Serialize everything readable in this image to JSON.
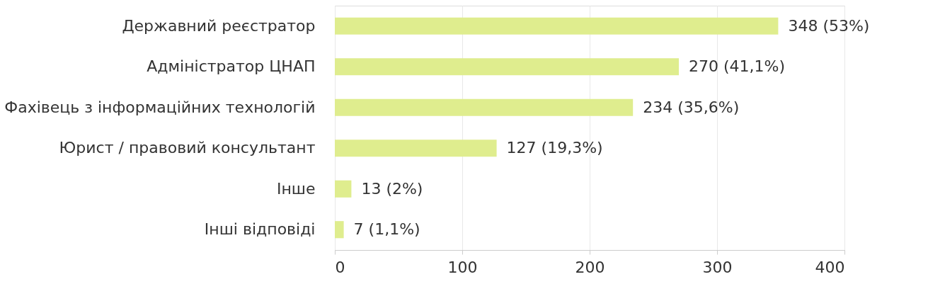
{
  "chart_data": {
    "type": "bar",
    "orientation": "horizontal",
    "categories": [
      "Державний реєстратор",
      "Адміністратор ЦНАП",
      "Фахівець з інформаційних технологій",
      "Юрист / правовий консультант",
      "Інше",
      "Інші відповіді"
    ],
    "values": [
      348,
      270,
      234,
      127,
      13,
      7
    ],
    "value_labels": [
      "348 (53%)",
      "270 (41,1%)",
      "234 (35,6%)",
      "127 (19,3%)",
      "13 (2%)",
      "7 (1,1%)"
    ],
    "color": "#dfed8e",
    "xlim": [
      0,
      400
    ],
    "xticks": [
      0,
      100,
      200,
      300,
      400
    ],
    "grid": "x"
  }
}
